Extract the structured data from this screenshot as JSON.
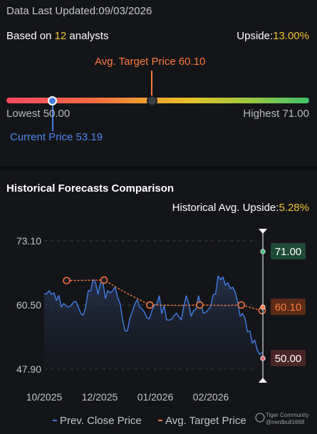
{
  "header": {
    "updated_text": "Data Last Updated:09/03/2026",
    "analysts_prefix": "Based on ",
    "analysts_count": "12",
    "analysts_suffix": " analysts",
    "upside_label": "Upside:",
    "upside_value": "13.00%"
  },
  "gauge": {
    "avg_label": "Avg. Target Price 60.10",
    "lowest_label": "Lowest 50.00",
    "highest_label": "Highest 71.00",
    "current_label": "Current Price 53.19"
  },
  "history": {
    "title": "Historical Forecasts Comparison",
    "upside_label": "Historical Avg. Upside:",
    "upside_value": "5.28%"
  },
  "watermark": {
    "line1": "Tiger Community",
    "line2": "@nerdbull1668"
  },
  "colors": {
    "close_line": "#3f7ee6",
    "target_line": "#ff7a3c",
    "high_badge": "#1f4a37",
    "avg_badge": "#5a2c17",
    "low_badge": "#4a2527"
  },
  "chart_data": {
    "type": "line",
    "y_ticks": [
      "73.10",
      "60.50",
      "47.90"
    ],
    "ylim": [
      47.9,
      73.1
    ],
    "x_ticks": [
      "10/2025",
      "12/2025",
      "01/2026",
      "02/2026"
    ],
    "legend": [
      "Prev. Close Price",
      "Avg. Target Price"
    ],
    "badges": {
      "high": "71.00",
      "avg": "60.10",
      "low": "50.00"
    },
    "series": [
      {
        "name": "Prev. Close Price",
        "values": [
          62.7,
          62.7,
          63.3,
          62.6,
          62.9,
          61.4,
          62.4,
          60.1,
          60.8,
          60.3,
          60.1,
          60.4,
          61.1,
          61.2,
          60.0,
          58.8,
          58.5,
          60.2,
          63.3,
          63.3,
          65.5,
          64.9,
          62.6,
          64.9,
          64.9,
          61.8,
          63.3,
          62.9,
          63.3,
          64.1,
          62.0,
          60.8,
          57.7,
          55.4,
          55.4,
          57.9,
          59.2,
          60.7,
          61.5,
          60.1,
          59.7,
          59.0,
          58.0,
          57.8,
          59.4,
          60.5,
          60.7,
          62.3,
          58.8,
          60.4,
          57.6,
          57.5,
          57.7,
          58.4,
          58.9,
          58.2,
          57.6,
          60.2,
          62.3,
          60.8,
          58.3,
          59.4,
          59.7,
          62.3,
          60.7,
          58.9,
          59.1,
          59.6,
          60.2,
          62.5,
          62.7,
          66.2,
          65.5,
          66.0,
          64.4,
          64.9,
          63.7,
          64.0,
          63.0,
          61.1,
          58.3,
          58.8,
          57.9,
          55.2,
          55.4,
          53.0,
          53.6,
          51.7,
          50.8,
          51.2
        ]
      },
      {
        "name": "Avg. Target Price",
        "values": [
          {
            "x": 0.06,
            "y": 65.3,
            "marker": true
          },
          {
            "x": 0.24,
            "y": 65.4,
            "marker": true
          },
          {
            "x": 0.34,
            "y": 63.0
          },
          {
            "x": 0.46,
            "y": 60.5,
            "marker": true
          },
          {
            "x": 0.6,
            "y": 60.4
          },
          {
            "x": 0.7,
            "y": 60.5,
            "marker": true
          },
          {
            "x": 0.83,
            "y": 60.4
          },
          {
            "x": 0.9,
            "y": 60.5,
            "marker": true
          },
          {
            "x": 1.0,
            "y": 59.4,
            "marker": true
          }
        ]
      }
    ]
  }
}
